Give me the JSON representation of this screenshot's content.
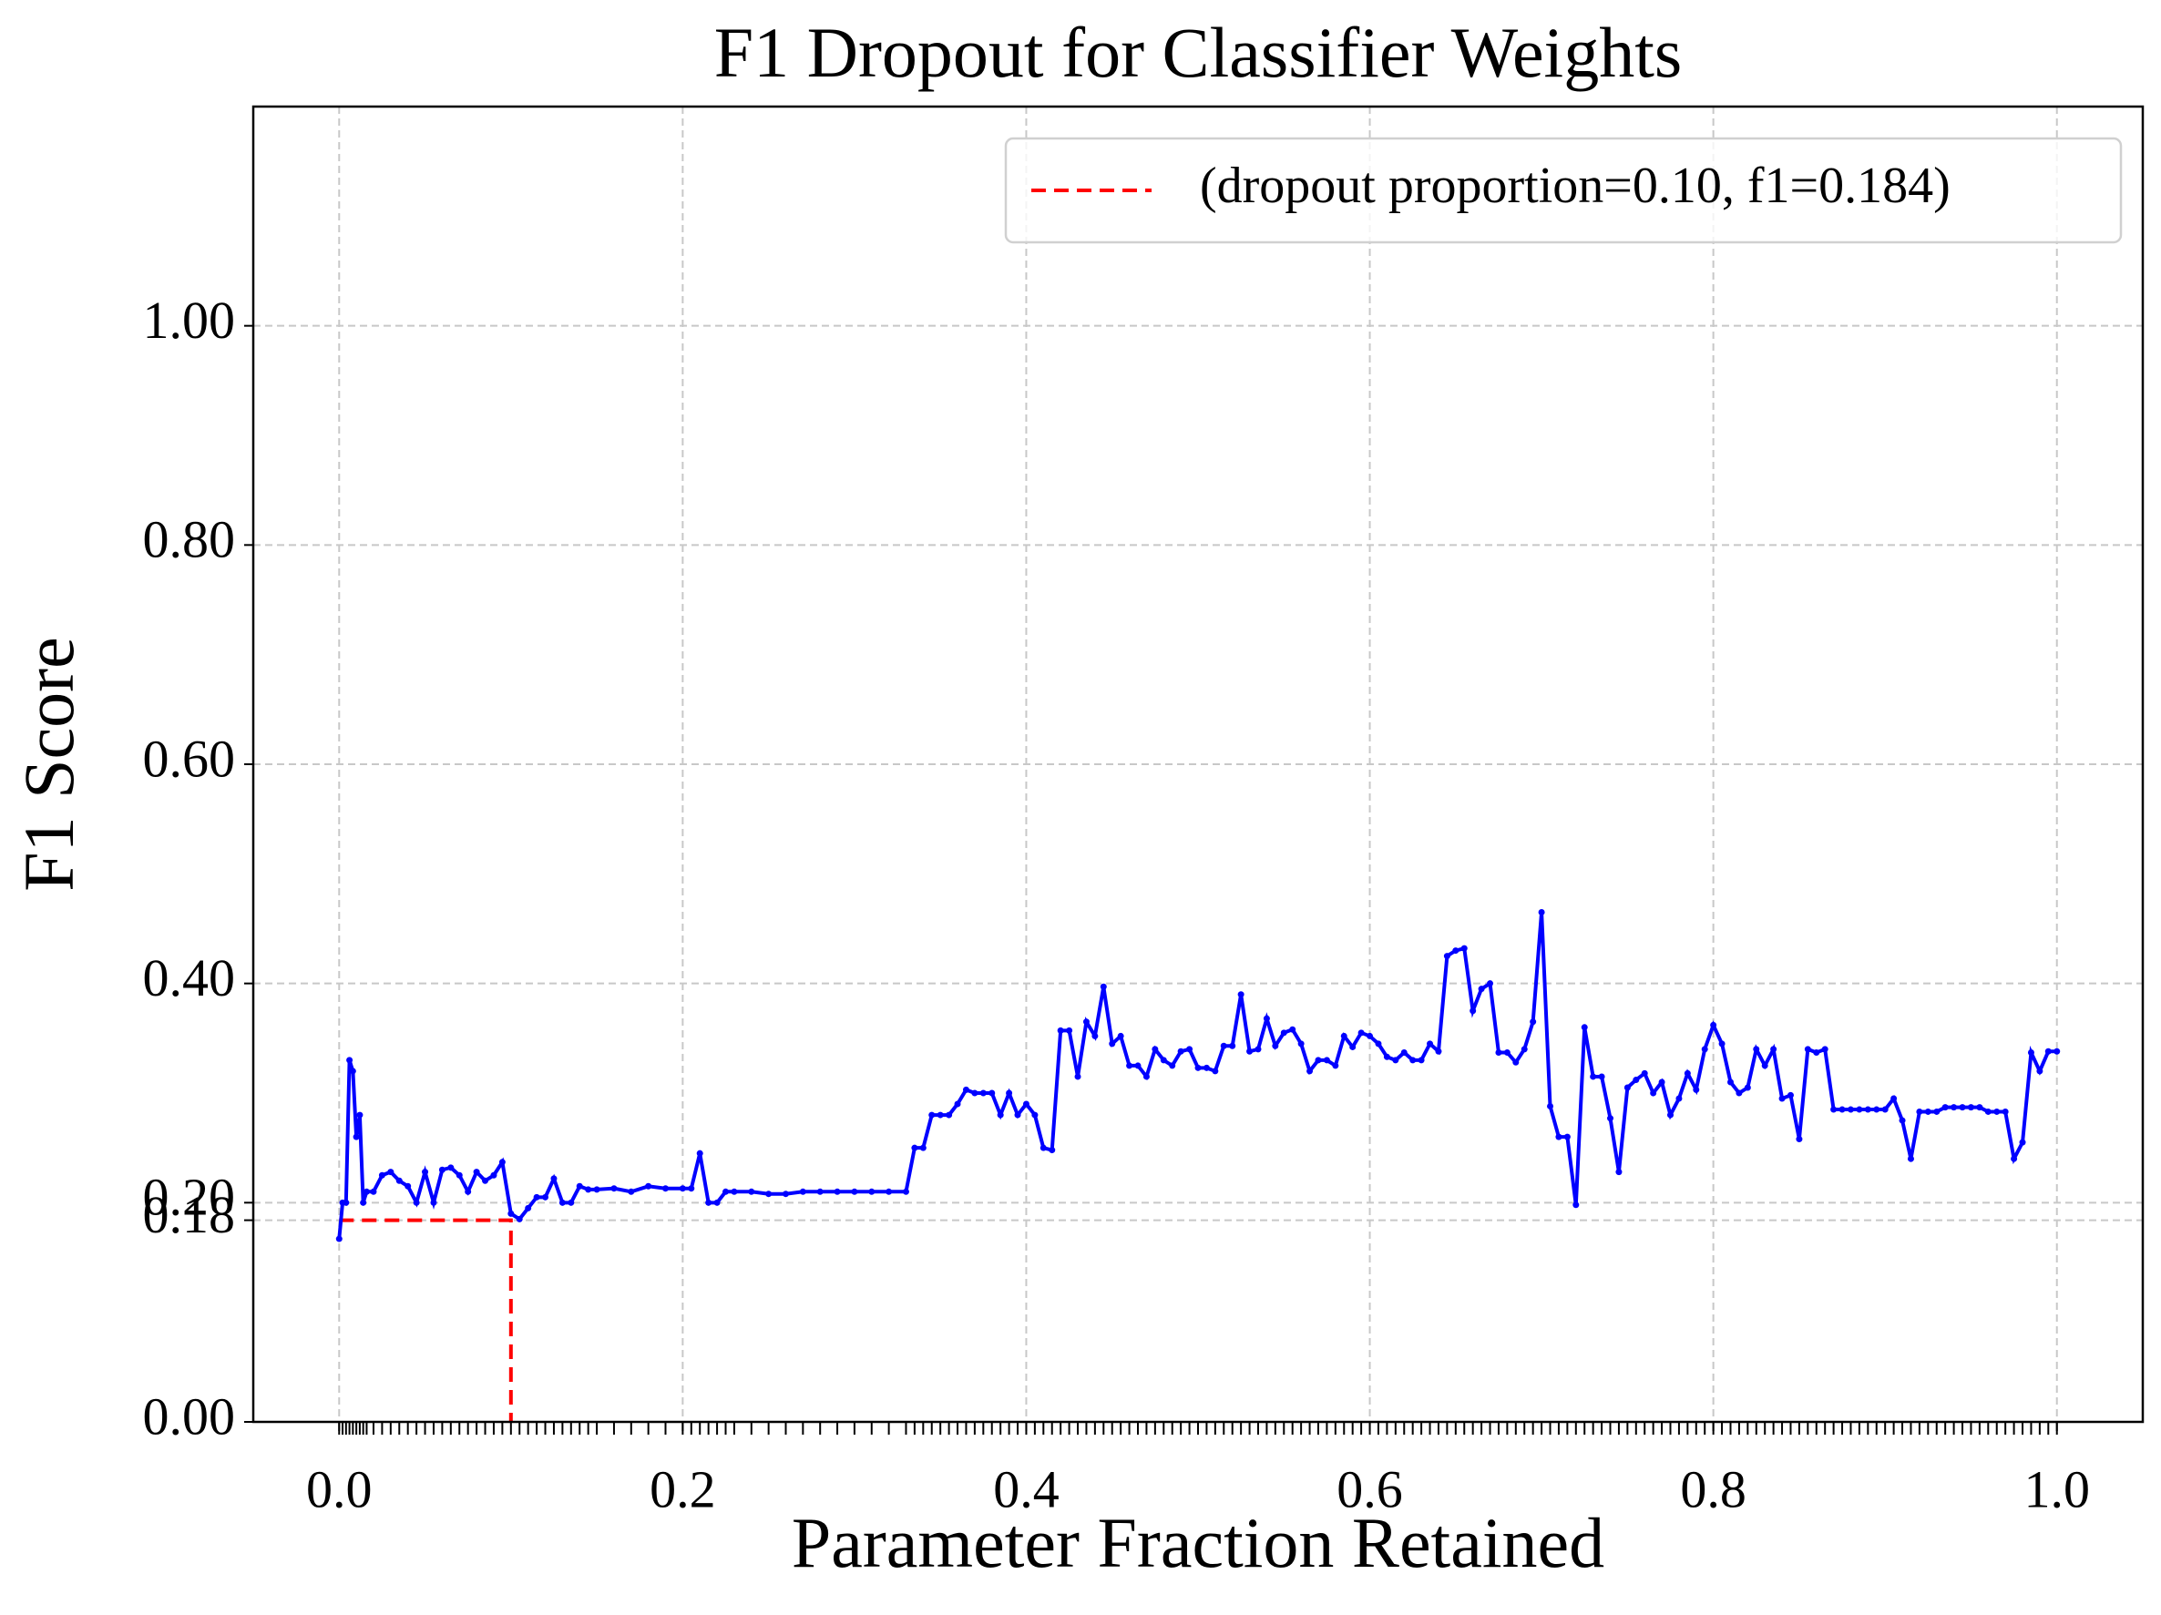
{
  "chart_data": {
    "type": "line",
    "title": "F1 Dropout for Classifier Weights",
    "x_label": "Parameter Fraction Retained",
    "y_label": "F1 Score",
    "xlim": [
      -0.05,
      1.05
    ],
    "ylim": [
      0,
      1.2
    ],
    "xticks": [
      {
        "value": 0,
        "label": "0.0"
      },
      {
        "value": 0.2,
        "label": "0.2"
      },
      {
        "value": 0.4,
        "label": "0.4"
      },
      {
        "value": 0.6,
        "label": "0.6"
      },
      {
        "value": 0.8,
        "label": "0.8"
      },
      {
        "value": 1,
        "label": "1.0"
      }
    ],
    "yticks": [
      {
        "value": 0,
        "label": "0.00"
      },
      {
        "value": 0.184,
        "label": "0.18"
      },
      {
        "value": 0.2,
        "label": "0.20"
      },
      {
        "value": 0.4,
        "label": "0.40"
      },
      {
        "value": 0.6,
        "label": "0.60"
      },
      {
        "value": 0.8,
        "label": "0.80"
      },
      {
        "value": 1,
        "label": "1.00"
      }
    ],
    "grid": true,
    "legend": "upper right",
    "series": [
      {
        "name": "(dropout proportion=0.10, f1=0.184)",
        "color": "#ff0000",
        "dashed": true,
        "x": [
          0,
          0.1,
          0.1
        ],
        "values": [
          0.184,
          0.184,
          0
        ]
      },
      {
        "color": "#0000ff",
        "markers": true,
        "x": [
          0,
          0.002,
          0.004,
          0.006,
          0.008,
          0.01,
          0.012,
          0.014,
          0.016,
          0.02,
          0.025,
          0.03,
          0.035,
          0.04,
          0.045,
          0.05,
          0.055,
          0.06,
          0.065,
          0.07,
          0.075,
          0.08,
          0.085,
          0.09,
          0.095,
          0.1,
          0.105,
          0.11,
          0.115,
          0.12,
          0.125,
          0.13,
          0.135,
          0.14,
          0.145,
          0.15,
          0.16,
          0.17,
          0.18,
          0.19,
          0.2,
          0.205,
          0.21,
          0.215,
          0.22,
          0.225,
          0.23,
          0.24,
          0.25,
          0.26,
          0.27,
          0.28,
          0.29,
          0.3,
          0.31,
          0.32,
          0.33,
          0.335,
          0.34,
          0.345,
          0.35,
          0.355,
          0.36,
          0.365,
          0.37,
          0.375,
          0.38,
          0.385,
          0.39,
          0.395,
          0.4,
          0.405,
          0.41,
          0.415,
          0.42,
          0.425,
          0.43,
          0.435,
          0.44,
          0.445,
          0.45,
          0.455,
          0.46,
          0.465,
          0.47,
          0.475,
          0.48,
          0.485,
          0.49,
          0.495,
          0.5,
          0.505,
          0.51,
          0.515,
          0.52,
          0.525,
          0.53,
          0.535,
          0.54,
          0.545,
          0.55,
          0.555,
          0.56,
          0.565,
          0.57,
          0.575,
          0.58,
          0.585,
          0.59,
          0.595,
          0.6,
          0.605,
          0.61,
          0.615,
          0.62,
          0.625,
          0.63,
          0.635,
          0.64,
          0.645,
          0.65,
          0.655,
          0.66,
          0.665,
          0.67,
          0.675,
          0.68,
          0.685,
          0.69,
          0.695,
          0.7,
          0.705,
          0.71,
          0.715,
          0.72,
          0.725,
          0.73,
          0.735,
          0.74,
          0.745,
          0.75,
          0.755,
          0.76,
          0.765,
          0.77,
          0.775,
          0.78,
          0.785,
          0.79,
          0.795,
          0.8,
          0.805,
          0.81,
          0.815,
          0.82,
          0.825,
          0.83,
          0.835,
          0.84,
          0.845,
          0.85,
          0.855,
          0.86,
          0.865,
          0.87,
          0.875,
          0.88,
          0.885,
          0.89,
          0.895,
          0.9,
          0.905,
          0.91,
          0.915,
          0.92,
          0.925,
          0.93,
          0.935,
          0.94,
          0.945,
          0.95,
          0.955,
          0.96,
          0.965,
          0.97,
          0.975,
          0.98,
          0.985,
          0.99,
          0.995,
          1
        ],
        "values": [
          0.167,
          0.2,
          0.2,
          0.33,
          0.32,
          0.26,
          0.28,
          0.2,
          0.21,
          0.21,
          0.225,
          0.228,
          0.22,
          0.215,
          0.2,
          0.228,
          0.2,
          0.23,
          0.232,
          0.225,
          0.21,
          0.228,
          0.22,
          0.225,
          0.237,
          0.19,
          0.185,
          0.195,
          0.205,
          0.205,
          0.222,
          0.2,
          0.2,
          0.215,
          0.212,
          0.212,
          0.213,
          0.21,
          0.215,
          0.213,
          0.213,
          0.213,
          0.245,
          0.2,
          0.2,
          0.21,
          0.21,
          0.21,
          0.208,
          0.208,
          0.21,
          0.21,
          0.21,
          0.21,
          0.21,
          0.21,
          0.21,
          0.25,
          0.25,
          0.28,
          0.28,
          0.28,
          0.29,
          0.303,
          0.3,
          0.3,
          0.3,
          0.28,
          0.3,
          0.28,
          0.29,
          0.28,
          0.25,
          0.248,
          0.357,
          0.357,
          0.315,
          0.365,
          0.352,
          0.397,
          0.345,
          0.352,
          0.325,
          0.325,
          0.315,
          0.34,
          0.33,
          0.325,
          0.338,
          0.34,
          0.323,
          0.323,
          0.32,
          0.343,
          0.343,
          0.39,
          0.338,
          0.34,
          0.368,
          0.343,
          0.355,
          0.358,
          0.345,
          0.32,
          0.33,
          0.33,
          0.325,
          0.352,
          0.342,
          0.355,
          0.352,
          0.345,
          0.333,
          0.33,
          0.337,
          0.33,
          0.33,
          0.345,
          0.338,
          0.425,
          0.43,
          0.432,
          0.375,
          0.395,
          0.4,
          0.337,
          0.337,
          0.328,
          0.34,
          0.365,
          0.465,
          0.288,
          0.26,
          0.26,
          0.198,
          0.36,
          0.315,
          0.315,
          0.277,
          0.228,
          0.305,
          0.312,
          0.318,
          0.3,
          0.31,
          0.28,
          0.295,
          0.318,
          0.303,
          0.34,
          0.362,
          0.345,
          0.31,
          0.3,
          0.305,
          0.34,
          0.325,
          0.34,
          0.295,
          0.298,
          0.258,
          0.34,
          0.337,
          0.34,
          0.285,
          0.285,
          0.285,
          0.285,
          0.285,
          0.285,
          0.285,
          0.295,
          0.275,
          0.24,
          0.283,
          0.283,
          0.283,
          0.287,
          0.287,
          0.287,
          0.287,
          0.287,
          0.283,
          0.283,
          0.283,
          0.24,
          0.255,
          0.337,
          0.32,
          0.338,
          0.338
        ]
      }
    ]
  }
}
